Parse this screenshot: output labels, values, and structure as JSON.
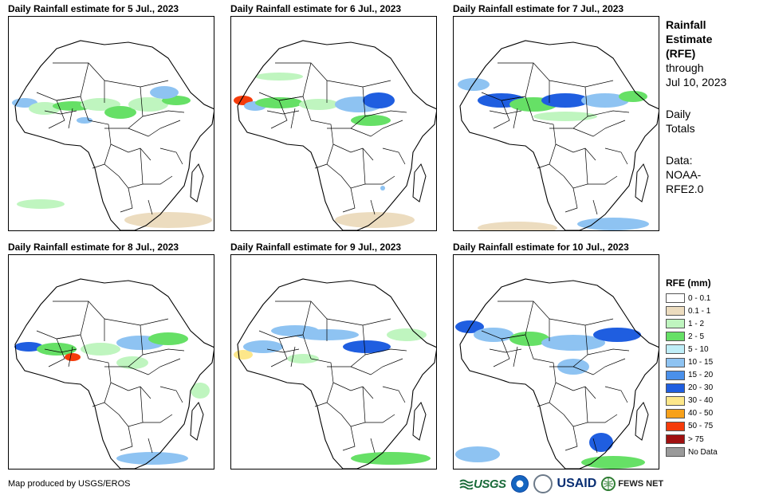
{
  "panels": [
    {
      "title": "Daily Rainfall estimate for 5 Jul., 2023"
    },
    {
      "title": "Daily Rainfall estimate for 6 Jul., 2023"
    },
    {
      "title": "Daily Rainfall estimate for 7 Jul., 2023"
    },
    {
      "title": "Daily Rainfall estimate for 8 Jul., 2023"
    },
    {
      "title": "Daily Rainfall estimate for 9 Jul., 2023"
    },
    {
      "title": "Daily Rainfall estimate for 10 Jul., 2023"
    }
  ],
  "side": {
    "title_line1": "Rainfall",
    "title_line2": "Estimate",
    "title_line3": "(RFE)",
    "through_line1": "through",
    "through_line2": "Jul 10, 2023",
    "totals_line1": "Daily",
    "totals_line2": "Totals",
    "data_line1": "Data:",
    "data_line2": "NOAA-",
    "data_line3": "RFE2.0"
  },
  "legend": {
    "title": "RFE (mm)",
    "items": [
      {
        "label": "0 - 0.1",
        "color": "#ffffff"
      },
      {
        "label": "0.1 - 1",
        "color": "#ecdcbf"
      },
      {
        "label": "1 - 2",
        "color": "#bff5bf"
      },
      {
        "label": "2 - 5",
        "color": "#66e066"
      },
      {
        "label": "5 - 10",
        "color": "#bfeef8"
      },
      {
        "label": "10 - 15",
        "color": "#8ec3f2"
      },
      {
        "label": "15 - 20",
        "color": "#4a90ea"
      },
      {
        "label": "20 - 30",
        "color": "#1f5ee0"
      },
      {
        "label": "30 - 40",
        "color": "#fde78a"
      },
      {
        "label": "40 - 50",
        "color": "#f7a11a"
      },
      {
        "label": "50 - 75",
        "color": "#f53b0a"
      },
      {
        "label": "> 75",
        "color": "#a01010"
      },
      {
        "label": "No Data",
        "color": "#9a9a9a"
      }
    ]
  },
  "credit": "Map produced by USGS/EROS",
  "logos": {
    "usgs": "USGS",
    "usaid": "USAID",
    "fews": "FEWS NET"
  }
}
